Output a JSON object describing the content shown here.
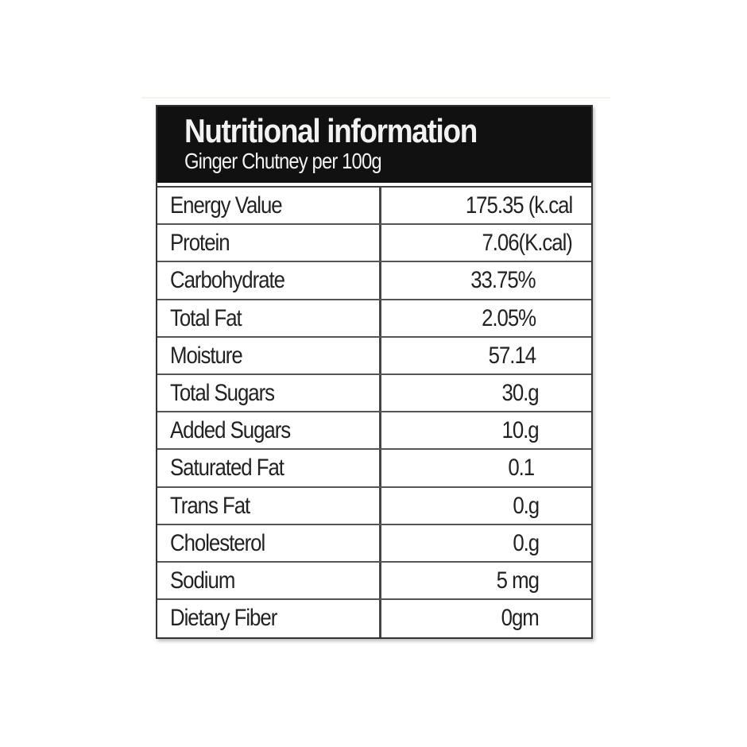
{
  "header": {
    "title": "Nutritional information",
    "subtitle": "Ginger Chutney per 100g"
  },
  "rows": [
    {
      "name": "Energy Value",
      "value": "175.35 (k.cal"
    },
    {
      "name": "Protein",
      "value": "7.06(K.cal)"
    },
    {
      "name": "Carbohydrate",
      "value": "33.75%"
    },
    {
      "name": "Total Fat",
      "value": "2.05%"
    },
    {
      "name": "Moisture",
      "value": "57.14"
    },
    {
      "name": "Total Sugars",
      "value": "30.g"
    },
    {
      "name": "Added Sugars",
      "value": "10.g"
    },
    {
      "name": "Saturated Fat",
      "value": "0.1"
    },
    {
      "name": "Trans Fat",
      "value": "0.g"
    },
    {
      "name": "Cholesterol",
      "value": "0.g"
    },
    {
      "name": "Sodium",
      "value": "5 mg"
    },
    {
      "name": "Dietary Fiber",
      "value": "0gm"
    }
  ]
}
